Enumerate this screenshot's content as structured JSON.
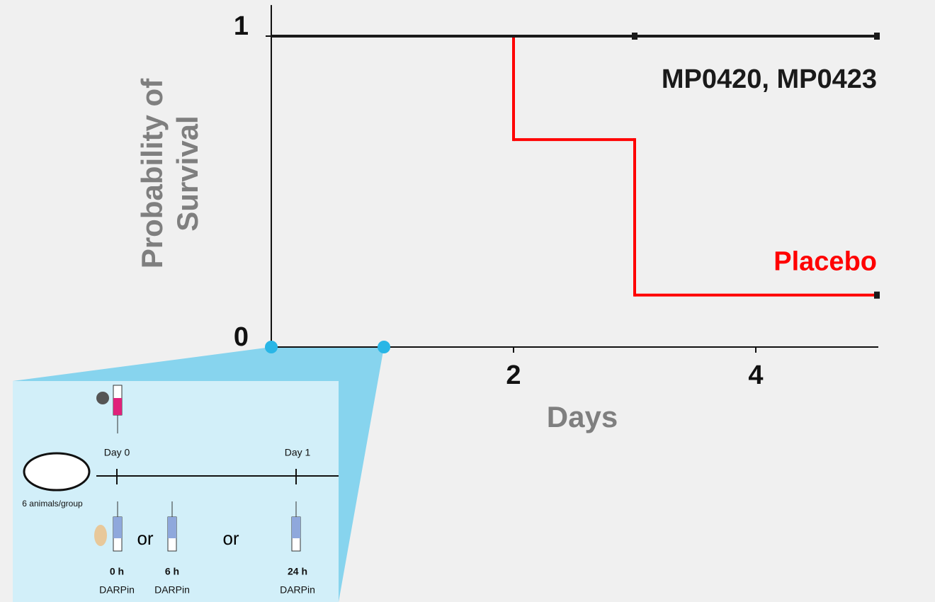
{
  "chart_data": {
    "type": "step",
    "ylabel": [
      "Probability of",
      "Survival"
    ],
    "xlabel": "Days",
    "xlim": [
      0,
      5
    ],
    "ylim": [
      0,
      1.1
    ],
    "xticks": [
      2,
      4
    ],
    "yticks": [
      0,
      1
    ],
    "series": [
      {
        "name": "Placebo",
        "color": "#ff0000",
        "x": [
          0,
          2,
          3,
          5
        ],
        "values": [
          1,
          0.667,
          0.167,
          0.167
        ]
      },
      {
        "name": "MP0420, MP0423",
        "color": "#1a1a1a",
        "x": [
          0,
          3,
          5
        ],
        "values": [
          1,
          1,
          1
        ]
      }
    ],
    "inset_range": [
      0,
      0.93
    ]
  },
  "inset": {
    "day_labels": [
      "Day 0",
      "Day 1"
    ],
    "group": "6 animals/group",
    "or": [
      "or",
      "or"
    ],
    "times": [
      "0 h",
      "6 h",
      "24 h"
    ],
    "treatment": [
      "DARPin",
      "DARPin",
      "DARPin"
    ]
  }
}
